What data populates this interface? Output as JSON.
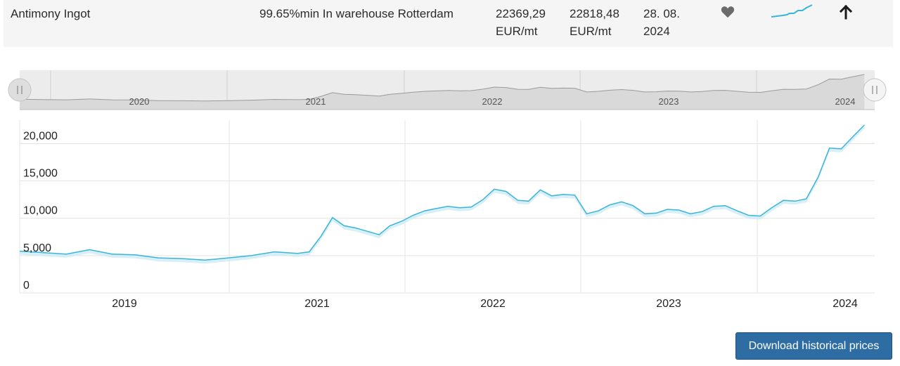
{
  "row": {
    "name": "Antimony Ingot",
    "spec": "99.65%min In warehouse Rotterdam",
    "price_low": "22369,29",
    "price_low_unit": "EUR/mt",
    "price_high": "22818,48",
    "price_high_unit": "EUR/mt",
    "date_line1": "28. 08.",
    "date_line2": "2024",
    "favorite_icon": "heart-icon",
    "trend_icon": "arrow-up-icon",
    "sparkline_icon": "sparkline-icon"
  },
  "navigator": {
    "year_labels": [
      "2020",
      "2021",
      "2022",
      "2023",
      "2024"
    ]
  },
  "download_button": "Download historical prices",
  "colors": {
    "line": "#3ab4d9",
    "area": "#cdebf5",
    "navigator_fill": "#d9d9d9",
    "navigator_line": "#9a9a9a",
    "button": "#2e6da4"
  },
  "chart_data": {
    "type": "line",
    "ylim": [
      0,
      22500
    ],
    "y_ticks": [
      0,
      5000,
      10000,
      15000,
      20000
    ],
    "y_tick_labels": [
      "0",
      "5,000",
      "10,000",
      "15,000",
      "20,000"
    ],
    "x_tick_labels": [
      "2019",
      "2021",
      "2022",
      "2023",
      "2024"
    ],
    "grid": true,
    "x": [
      "2018-07",
      "2018-09",
      "2018-11",
      "2019-01",
      "2019-03",
      "2019-05",
      "2019-07",
      "2019-09",
      "2019-11",
      "2020-01",
      "2020-03",
      "2020-05",
      "2020-07",
      "2020-08",
      "2020-09",
      "2020-10",
      "2020-11",
      "2020-12",
      "2021-02",
      "2021-03",
      "2021-04",
      "2021-05",
      "2021-06",
      "2021-07",
      "2021-08",
      "2021-09",
      "2021-10",
      "2021-11",
      "2021-12",
      "2022-01",
      "2022-02",
      "2022-03",
      "2022-04",
      "2022-05",
      "2022-06",
      "2022-07",
      "2022-08",
      "2022-09",
      "2022-10",
      "2022-11",
      "2022-12",
      "2023-01",
      "2023-02",
      "2023-03",
      "2023-04",
      "2023-05",
      "2023-06",
      "2023-07",
      "2023-08",
      "2023-09",
      "2023-10",
      "2023-11",
      "2023-12",
      "2024-01",
      "2024-02",
      "2024-03",
      "2024-04",
      "2024-05",
      "2024-06",
      "2024-07",
      "2024-08"
    ],
    "values": [
      5600,
      5400,
      5200,
      5800,
      5200,
      5100,
      4700,
      4600,
      4400,
      4700,
      5000,
      5500,
      5300,
      5500,
      7600,
      10100,
      9000,
      8700,
      7800,
      9000,
      9600,
      10400,
      11000,
      11300,
      11600,
      11400,
      11500,
      12500,
      13900,
      13600,
      12400,
      12300,
      13800,
      13000,
      13200,
      13100,
      10600,
      11000,
      11800,
      12200,
      11700,
      10600,
      10700,
      11200,
      11100,
      10600,
      10900,
      11600,
      11700,
      11000,
      10400,
      10300,
      11400,
      12400,
      12300,
      12600,
      15500,
      19400,
      19300,
      20900,
      22500
    ]
  }
}
